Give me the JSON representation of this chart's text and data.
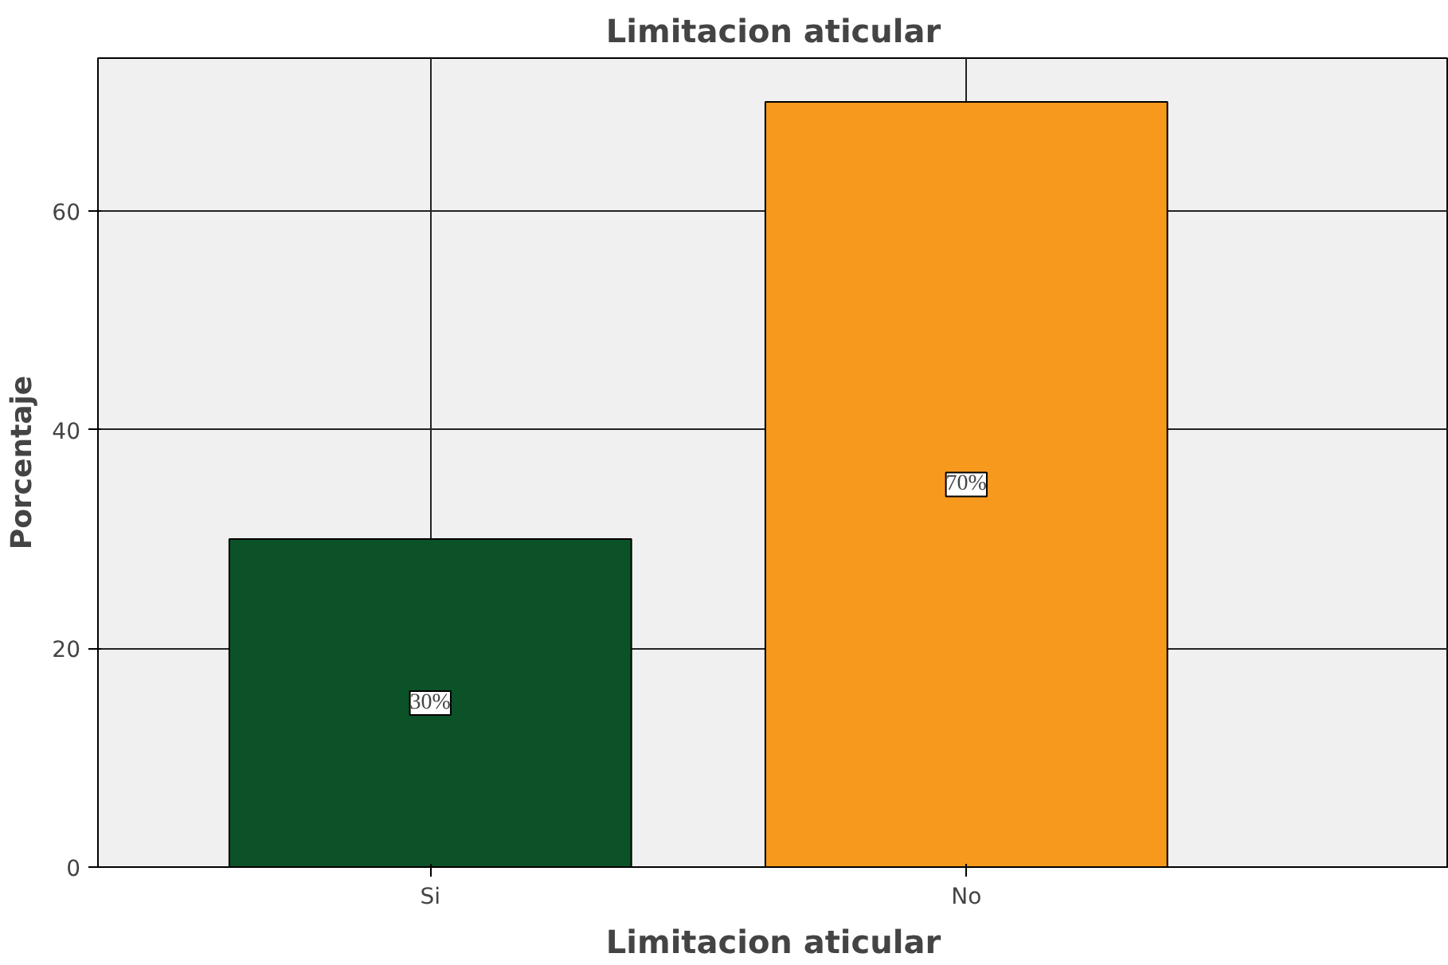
{
  "chart_data": {
    "type": "bar",
    "title": "Limitacion aticular",
    "xlabel": "Limitacion aticular",
    "ylabel": "Porcentaje",
    "categories": [
      "Si",
      "No"
    ],
    "values": [
      30,
      70
    ],
    "colors": [
      "#0b5229",
      "#f7991d"
    ],
    "value_labels": [
      "30%",
      "70%"
    ],
    "ylim": [
      0,
      74
    ],
    "yticks": [
      0,
      20,
      40,
      60
    ],
    "grid": true
  }
}
